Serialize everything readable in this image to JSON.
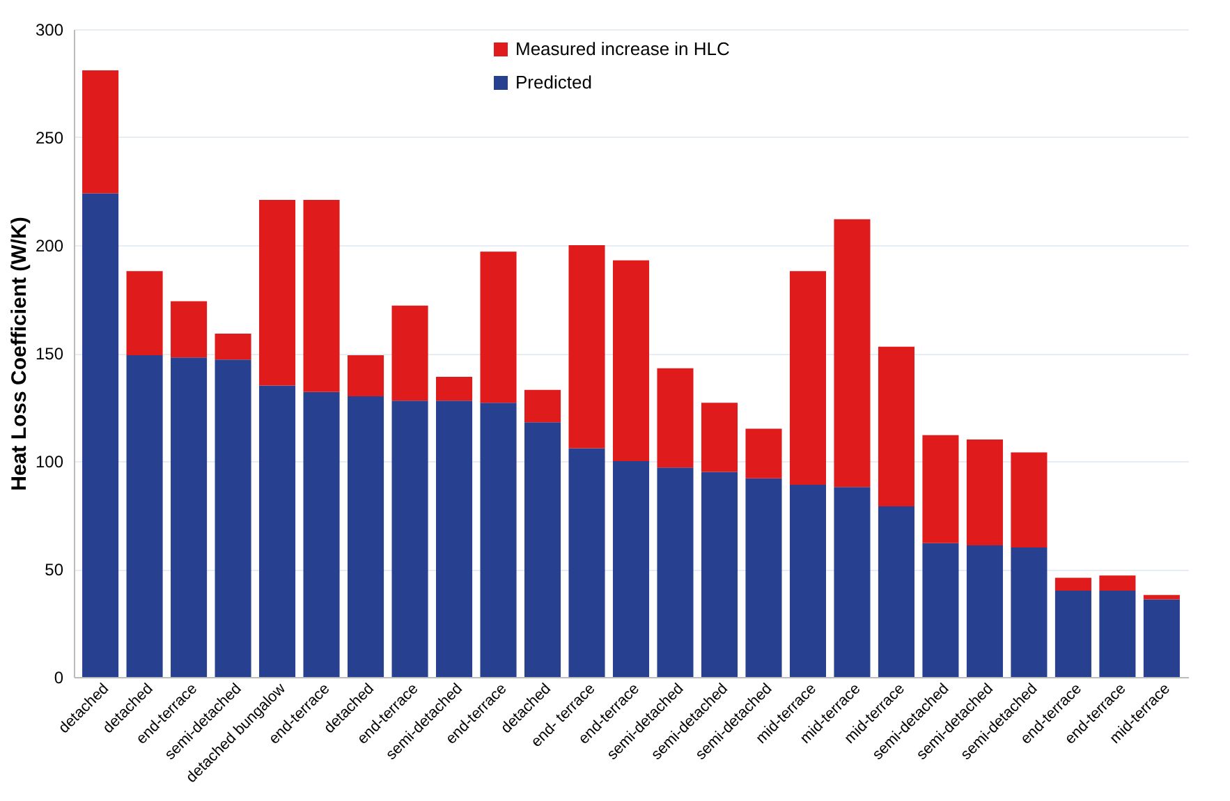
{
  "chart_data": {
    "type": "bar",
    "stacked": true,
    "ylabel": "Heat Loss Coefficient (W/K)",
    "categories": [
      "detached",
      "detached",
      "end-terrace",
      "semi-detached",
      "detached bungalow",
      "end-terrace",
      "detached",
      "end-terrace",
      "semi-detached",
      "end-terrace",
      "detached",
      "end- terrace",
      "end-terrace",
      "semi-detached",
      "semi-detached",
      "semi-detached",
      "mid-terrace",
      "mid-terrace",
      "mid-terrace",
      "semi-detached",
      "semi-detached",
      "semi-detached",
      "end-terrace",
      "end-terrace",
      "mid-terrace"
    ],
    "series": [
      {
        "name": "Predicted",
        "color": "#27408f",
        "values": [
          224,
          149,
          148,
          147,
          135,
          132,
          130,
          128,
          128,
          127,
          118,
          106,
          100,
          97,
          95,
          92,
          89,
          88,
          79,
          62,
          61,
          60,
          40,
          40,
          36
        ]
      },
      {
        "name": "Measured increase in HLC",
        "color": "#e01b1b",
        "values": [
          57,
          39,
          26,
          12,
          86,
          89,
          19,
          44,
          11,
          70,
          15,
          94,
          93,
          46,
          32,
          23,
          99,
          124,
          74,
          50,
          49,
          44,
          6,
          7,
          2
        ]
      }
    ],
    "ylim": [
      0,
      300
    ],
    "yticks": [
      0,
      50,
      100,
      150,
      200,
      250,
      300
    ],
    "grid": "y",
    "legend": "top"
  }
}
